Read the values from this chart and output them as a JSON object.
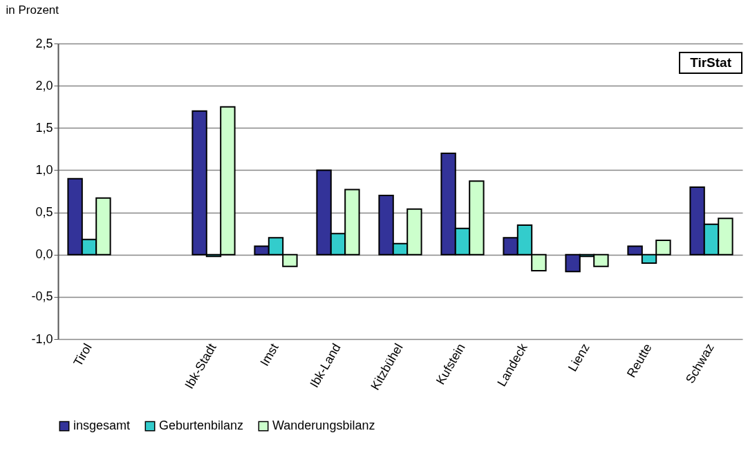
{
  "chart_data": {
    "type": "bar",
    "ylabel": "in Prozent",
    "annotations": [
      "TirStat"
    ],
    "categories": [
      "Tirol",
      null,
      "Ibk-Stadt",
      "Imst",
      "Ibk-Land",
      "Kitzbühel",
      "Kufstein",
      "Landeck",
      "Lienz",
      "Reutte",
      "Schwaz"
    ],
    "series": [
      {
        "name": "insgesamt",
        "color": "#333399",
        "values": [
          0.9,
          null,
          1.7,
          0.1,
          1.0,
          0.7,
          1.2,
          0.2,
          -0.2,
          0.1,
          0.8
        ]
      },
      {
        "name": "Geburtenbilanz",
        "color": "#33cccc",
        "values": [
          0.18,
          null,
          -0.02,
          0.2,
          0.25,
          0.13,
          0.31,
          0.35,
          -0.02,
          -0.1,
          0.36
        ]
      },
      {
        "name": "Wanderungsbilanz",
        "color": "#ccffcc",
        "values": [
          0.67,
          null,
          1.75,
          -0.14,
          0.77,
          0.54,
          0.87,
          -0.19,
          -0.14,
          0.17,
          0.43
        ]
      }
    ],
    "ylim": [
      -1.0,
      2.5
    ],
    "yticks": [
      {
        "value": -1.0,
        "label": "-1,0"
      },
      {
        "value": -0.5,
        "label": "-0,5"
      },
      {
        "value": 0,
        "label": "0,0"
      },
      {
        "value": 0.5,
        "label": "0,5"
      },
      {
        "value": 1.0,
        "label": "1,0"
      },
      {
        "value": 1.5,
        "label": "1,5"
      },
      {
        "value": 2.0,
        "label": "2,0"
      },
      {
        "value": 2.5,
        "label": "2,5"
      }
    ],
    "grid": "y",
    "legend": "bottom"
  }
}
